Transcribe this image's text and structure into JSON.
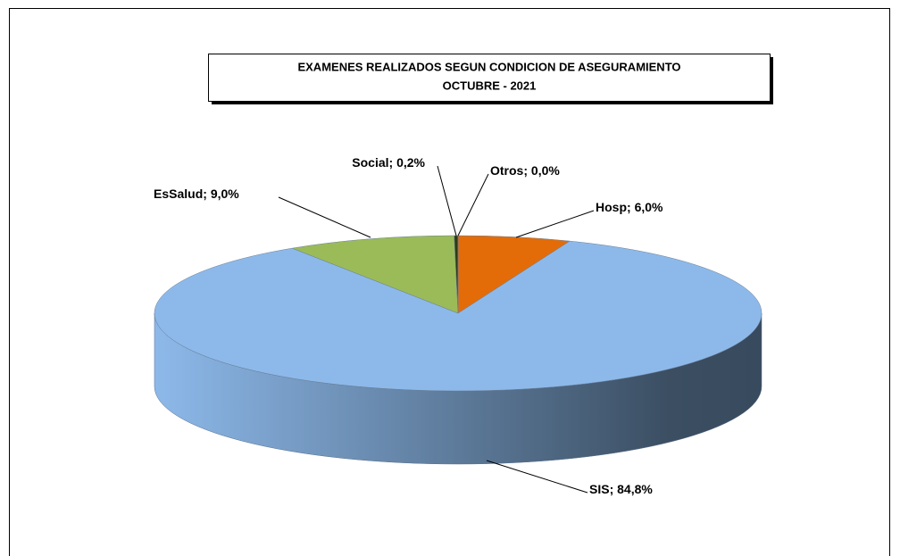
{
  "chart_data": {
    "type": "pie",
    "title": "EXAMENES REALIZADOS SEGUN CONDICION  DE ASEGURAMIENTO",
    "subtitle": "OCTUBRE - 2021",
    "categories": [
      "Hosp",
      "SIS",
      "EsSalud",
      "Social",
      "Otros"
    ],
    "values": [
      6.0,
      84.8,
      9.0,
      0.2,
      0.0
    ],
    "value_labels": [
      "6,0%",
      "84,8%",
      "9,0%",
      "0,2%",
      "0,0%"
    ],
    "label_separator": "; ",
    "colors": [
      "#e36c09",
      "#8db9ea",
      "#9bbb59",
      "#2e3b14",
      "#1f1f1f"
    ]
  }
}
